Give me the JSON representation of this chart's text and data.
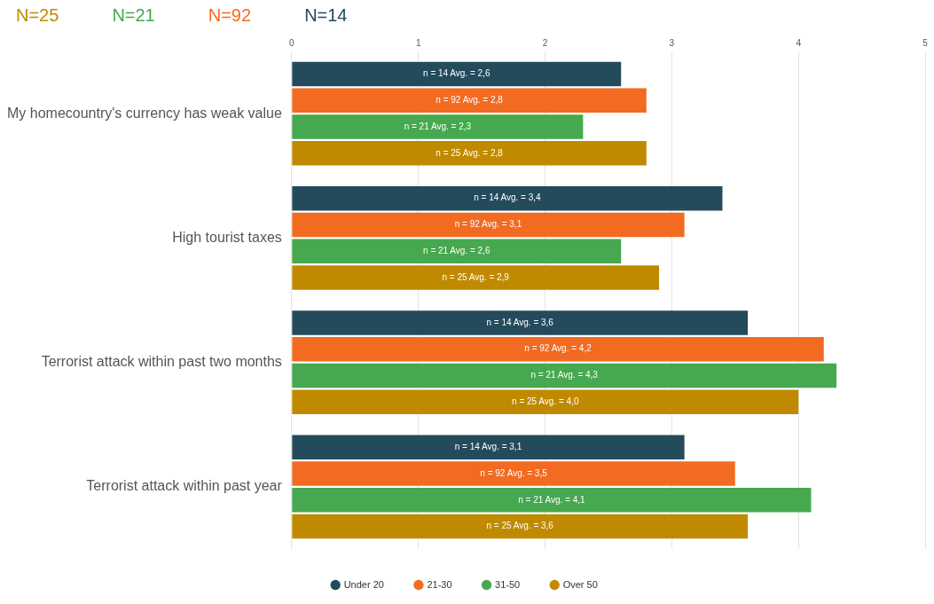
{
  "chart_data": {
    "type": "bar",
    "orientation": "horizontal",
    "categories": [
      "My homecountry's currency has weak value",
      "High tourist taxes",
      "Terrorist attack within past two months",
      "Terrorist attack within past year"
    ],
    "series": [
      {
        "name": "Under 20",
        "color": "#234b5b",
        "values": [
          2.6,
          3.4,
          3.6,
          3.1
        ],
        "value_labels": [
          "n = 14 Avg. = 2,6",
          "n = 14 Avg. = 3,4",
          "n = 14 Avg. = 3,6",
          "n = 14 Avg. = 3,1"
        ]
      },
      {
        "name": "21-30",
        "color": "#f26b21",
        "values": [
          2.8,
          3.1,
          4.2,
          3.5
        ],
        "value_labels": [
          "n = 92 Avg. = 2,8",
          "n = 92 Avg. = 3,1",
          "n = 92 Avg. = 4,2",
          "n = 92 Avg. = 3,5"
        ]
      },
      {
        "name": "31-50",
        "color": "#46a84f",
        "values": [
          2.3,
          2.6,
          4.3,
          4.1
        ],
        "value_labels": [
          "n = 21 Avg. = 2,3",
          "n = 21 Avg. = 2,6",
          "n = 21 Avg. = 4,3",
          "n = 21 Avg. = 4,1"
        ]
      },
      {
        "name": "Over 50",
        "color": "#c08a00",
        "values": [
          2.8,
          2.9,
          4.0,
          3.6
        ],
        "value_labels": [
          "n = 25 Avg. = 2,8",
          "n = 25 Avg. = 2,9",
          "n = 25 Avg. = 4,0",
          "n = 25 Avg. = 3,6"
        ]
      }
    ],
    "xlim": [
      0,
      5
    ],
    "xticks": [
      0,
      1,
      2,
      3,
      4,
      5
    ],
    "grid": "x",
    "legend": "bottom",
    "annotations": [
      "N=25",
      "N=21",
      "N=92",
      "N=14"
    ]
  }
}
